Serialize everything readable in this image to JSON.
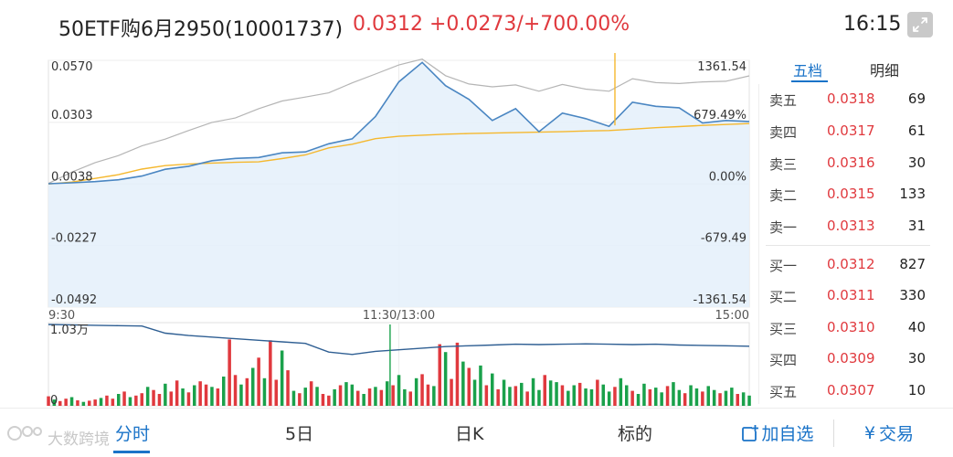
{
  "header": {
    "title": "50ETF购6月2950(10001737)",
    "price": "0.0312",
    "change": "+0.0273/+700.00%",
    "time": "16:15"
  },
  "icons": {
    "expand": "expand-icon",
    "add_watchlist": "add-watchlist-icon",
    "yen": "yen-icon"
  },
  "colors": {
    "up_red": "#e0393e",
    "down_green": "#1aa14b",
    "price_line": "#4a86c2",
    "avg_line": "#f5b82e",
    "underlying_line": "#b5b5b5",
    "accent_blue": "#1a73c8"
  },
  "chart_data": [
    {
      "type": "line",
      "name": "intraday-price",
      "y_left_labels": [
        "0.0570",
        "0.0303",
        "0.0038",
        "-0.0227",
        "-0.0492"
      ],
      "y_right_labels": [
        "1361.54",
        "679.49%",
        "0.00%",
        "-679.49",
        "-1361.54"
      ],
      "ylim": [
        -0.0492,
        0.057
      ],
      "time_labels": [
        "9:30",
        "11:30/13:00",
        "15:00"
      ],
      "x": [
        0,
        8,
        16,
        24,
        32,
        40,
        48,
        56,
        64,
        72,
        80,
        88,
        96,
        104,
        112,
        120,
        128,
        136,
        144,
        152,
        160,
        168,
        176,
        184,
        192,
        200,
        208,
        216,
        224,
        232,
        240
      ],
      "series": [
        {
          "values": [
            0.0039,
            0.0043,
            0.0048,
            0.0056,
            0.0072,
            0.0101,
            0.0114,
            0.0138,
            0.0148,
            0.0152,
            0.0172,
            0.0176,
            0.0211,
            0.0232,
            0.0328,
            0.0477,
            0.0561,
            0.0461,
            0.0402,
            0.0311,
            0.0362,
            0.0263,
            0.0343,
            0.0319,
            0.0286,
            0.039,
            0.0372,
            0.0366,
            0.03,
            0.0311,
            0.0307
          ]
        },
        {
          "values": [
            0.0038,
            0.0046,
            0.0062,
            0.0078,
            0.0102,
            0.0117,
            0.0124,
            0.0128,
            0.0131,
            0.0133,
            0.0147,
            0.0163,
            0.0193,
            0.0209,
            0.0233,
            0.0243,
            0.0248,
            0.0252,
            0.0255,
            0.0257,
            0.0259,
            0.0261,
            0.0263,
            0.0266,
            0.0268,
            0.0274,
            0.028,
            0.0285,
            0.029,
            0.0294,
            0.0298
          ]
        },
        {
          "values": [
            0.004,
            0.0089,
            0.013,
            0.016,
            0.0202,
            0.0231,
            0.0268,
            0.0303,
            0.0322,
            0.0362,
            0.0395,
            0.0412,
            0.043,
            0.0473,
            0.0511,
            0.055,
            0.0575,
            0.0504,
            0.0468,
            0.0456,
            0.0464,
            0.0437,
            0.0466,
            0.0446,
            0.0437,
            0.0491,
            0.0474,
            0.047,
            0.0477,
            0.048,
            0.0503
          ]
        }
      ]
    },
    {
      "type": "bar",
      "name": "volume",
      "y_label": "1.03万",
      "y_zero_label": "0",
      "ylim": [
        0,
        10300
      ],
      "x": [
        0,
        2,
        4,
        6,
        8,
        10,
        12,
        14,
        16,
        18,
        20,
        22,
        24,
        26,
        28,
        30,
        32,
        34,
        36,
        38,
        40,
        42,
        44,
        46,
        48,
        50,
        52,
        54,
        56,
        58,
        60,
        62,
        64,
        66,
        68,
        70,
        72,
        74,
        76,
        78,
        80,
        82,
        84,
        86,
        88,
        90,
        92,
        94,
        96,
        98,
        100,
        102,
        104,
        106,
        108,
        110,
        112,
        114,
        116,
        118,
        120,
        122,
        124,
        126,
        128,
        130,
        132,
        134,
        136,
        138,
        140,
        142,
        144,
        146,
        148,
        150,
        152,
        154,
        156,
        158,
        160,
        162,
        164,
        166,
        168,
        170,
        172,
        174,
        176,
        178,
        180,
        182,
        184,
        186,
        188,
        190,
        192,
        194,
        196,
        198,
        200,
        202,
        204,
        206,
        208,
        210,
        212,
        214,
        216,
        218,
        220,
        222,
        224,
        226,
        228,
        230,
        232,
        234,
        236,
        238,
        240
      ],
      "values": [
        1200,
        800,
        600,
        900,
        1100,
        700,
        500,
        650,
        800,
        1000,
        1300,
        900,
        1500,
        1800,
        1100,
        1300,
        1600,
        2400,
        2000,
        1500,
        2800,
        1800,
        3200,
        2200,
        1700,
        2600,
        3100,
        2700,
        2400,
        2200,
        3700,
        8400,
        3900,
        2700,
        3500,
        4800,
        6100,
        3500,
        8300,
        3300,
        7000,
        4500,
        1900,
        1600,
        2300,
        3100,
        2400,
        1500,
        1300,
        2100,
        2600,
        3000,
        2700,
        1900,
        1500,
        2200,
        2400,
        2000,
        3100,
        2600,
        3900,
        2100,
        1800,
        3500,
        4000,
        2700,
        2500,
        7800,
        6800,
        3400,
        8000,
        5600,
        4800,
        3300,
        5100,
        2600,
        4100,
        2100,
        3300,
        2400,
        2500,
        2900,
        1800,
        3500,
        2000,
        3900,
        3200,
        3000,
        2600,
        1900,
        2600,
        2900,
        2200,
        2100,
        3300,
        2700,
        1800,
        2400,
        3500,
        2600,
        1900,
        1500,
        2800,
        2100,
        2300,
        1700,
        2500,
        3000,
        2000,
        1600,
        2600,
        2200,
        1800,
        2500,
        2000,
        1600,
        1900,
        2300,
        1500,
        1700,
        1300
      ],
      "direction": [
        "up",
        "down",
        "up",
        "up",
        "down",
        "up",
        "down",
        "up",
        "up",
        "down",
        "up",
        "up",
        "down",
        "up",
        "down",
        "up",
        "up",
        "down",
        "up",
        "up",
        "down",
        "up",
        "up",
        "down",
        "up",
        "down",
        "up",
        "up",
        "down",
        "up",
        "down",
        "up",
        "up",
        "down",
        "up",
        "down",
        "up",
        "down",
        "up",
        "up",
        "down",
        "up",
        "down",
        "up",
        "down",
        "up",
        "down",
        "up",
        "up",
        "down",
        "up",
        "down",
        "down",
        "up",
        "down",
        "up",
        "down",
        "up",
        "down",
        "up",
        "down",
        "down",
        "up",
        "down",
        "up",
        "up",
        "down",
        "up",
        "down",
        "up",
        "up",
        "down",
        "up",
        "down",
        "down",
        "up",
        "down",
        "up",
        "down",
        "down",
        "up",
        "down",
        "up",
        "down",
        "down",
        "up",
        "down",
        "down",
        "up",
        "down",
        "down",
        "up",
        "down",
        "down",
        "up",
        "down",
        "down",
        "up",
        "down",
        "down",
        "up",
        "down",
        "down",
        "up",
        "down",
        "down",
        "up",
        "down",
        "down",
        "up",
        "down",
        "down",
        "up",
        "down",
        "down",
        "up",
        "down",
        "down",
        "up",
        "down",
        "down"
      ],
      "open_interest_line": [
        10300,
        10250,
        10200,
        10150,
        10100,
        9200,
        8900,
        8700,
        8500,
        8300,
        8100,
        7900,
        6800,
        6500,
        6900,
        7100,
        7300,
        7500,
        7600,
        7700,
        7800,
        7750,
        7800,
        7850,
        7800,
        7750,
        7800,
        7700,
        7650,
        7600,
        7550
      ]
    }
  ],
  "order_book": {
    "tabs": [
      "五档",
      "明细"
    ],
    "asks": [
      {
        "label": "卖五",
        "price": "0.0318",
        "volume": "69"
      },
      {
        "label": "卖四",
        "price": "0.0317",
        "volume": "61"
      },
      {
        "label": "卖三",
        "price": "0.0316",
        "volume": "30"
      },
      {
        "label": "卖二",
        "price": "0.0315",
        "volume": "133"
      },
      {
        "label": "卖一",
        "price": "0.0313",
        "volume": "31"
      }
    ],
    "bids": [
      {
        "label": "买一",
        "price": "0.0312",
        "volume": "827"
      },
      {
        "label": "买二",
        "price": "0.0311",
        "volume": "330"
      },
      {
        "label": "买三",
        "price": "0.0310",
        "volume": "40"
      },
      {
        "label": "买四",
        "price": "0.0309",
        "volume": "30"
      },
      {
        "label": "买五",
        "price": "0.0307",
        "volume": "10"
      }
    ]
  },
  "bottom_tabs": [
    "分时",
    "5日",
    "日K",
    "标的"
  ],
  "actions": {
    "add_watchlist": "加自选",
    "trade": "交易"
  },
  "watermark": "大数跨境"
}
